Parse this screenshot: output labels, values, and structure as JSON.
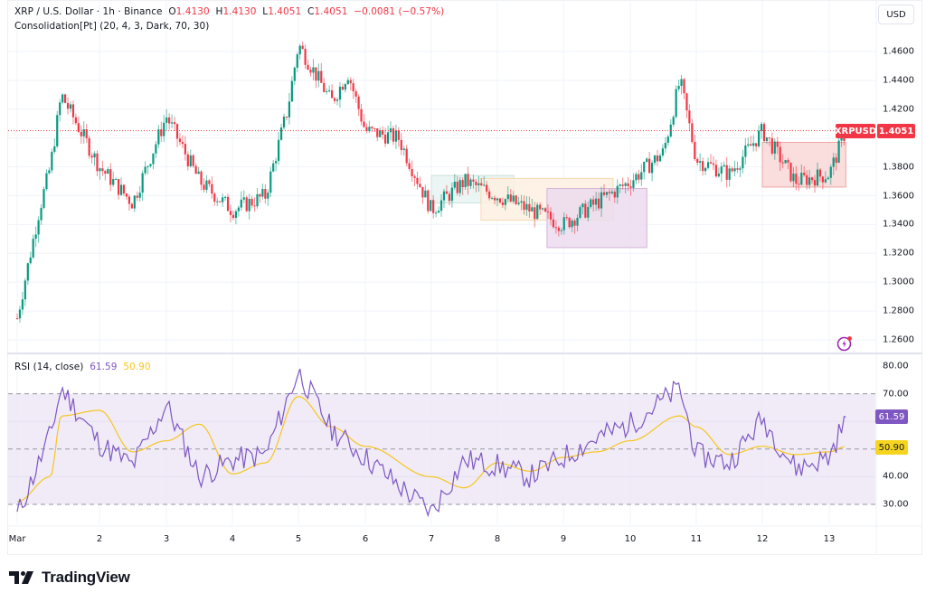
{
  "header": {
    "symbol_line": "XRP / U.S. Dollar · 1h · Binance",
    "o_label": "O",
    "o_value": "1.4130",
    "h_label": "H",
    "h_value": "1.4130",
    "l_label": "L",
    "l_value": "1.4051",
    "c_label": "C",
    "c_value": "1.4051",
    "change": "−0.0081 (−0.57%)",
    "indicator": "Consolidation[Pt] (20, 4, 3, Dark, 70, 30)"
  },
  "currency_button": "USD",
  "price_axis": {
    "labels": [
      "1.4600",
      "1.4400",
      "1.4200",
      "1.4000",
      "1.3800",
      "1.3600",
      "1.3400",
      "1.3200",
      "1.3000",
      "1.2800",
      "1.2600"
    ],
    "last_price": "1.4051",
    "symbol_tag": "XRPUSD"
  },
  "rsi": {
    "title": "RSI (14, close)",
    "value": "61.59",
    "ma_value": "50.90",
    "axis_labels": [
      "80.00",
      "70.00",
      "50.00",
      "40.00",
      "30.00"
    ],
    "upper_band": 70,
    "lower_band": 30,
    "middle_band": 50
  },
  "time_axis": {
    "labels": [
      "Mar",
      "2",
      "3",
      "4",
      "5",
      "6",
      "7",
      "8",
      "9",
      "10",
      "11",
      "12",
      "13"
    ]
  },
  "branding": {
    "logo_text": "TradingView"
  },
  "colors": {
    "up": "#089981",
    "down": "#f23645",
    "rsi_line": "#7e57c2",
    "rsi_ma": "#f7c51e",
    "rsi_band_fill": "#7e57c21a",
    "last_price_line": "#f23645",
    "box_teal": "#b2dfdb",
    "box_orange": "#ffe0b2",
    "box_purple": "#e1bee7",
    "box_red": "#f8bbbb"
  },
  "chart_data": {
    "type": "candlestick",
    "title": "XRP / U.S. Dollar · 1h · Binance",
    "xlabel": "",
    "ylabel": "USD",
    "ylim": [
      1.25,
      1.475
    ],
    "x_ticks": [
      "Mar",
      "2",
      "3",
      "4",
      "5",
      "6",
      "7",
      "8",
      "9",
      "10",
      "11",
      "12",
      "13"
    ],
    "last": {
      "open": 1.413,
      "high": 1.413,
      "low": 1.4051,
      "close": 1.4051,
      "change": -0.0081,
      "change_pct": -0.57
    },
    "close_path": [
      {
        "x": "Mar 1 00:00",
        "close": 1.275
      },
      {
        "x": "Mar 1 08:00",
        "close": 1.35
      },
      {
        "x": "Mar 1 12:00",
        "close": 1.38
      },
      {
        "x": "Mar 1 16:00",
        "close": 1.43
      },
      {
        "x": "Mar 2 00:00",
        "close": 1.38
      },
      {
        "x": "Mar 2 12:00",
        "close": 1.355
      },
      {
        "x": "Mar 3 00:00",
        "close": 1.415
      },
      {
        "x": "Mar 3 12:00",
        "close": 1.37
      },
      {
        "x": "Mar 4 00:00",
        "close": 1.35
      },
      {
        "x": "Mar 4 12:00",
        "close": 1.36
      },
      {
        "x": "Mar 4 20:00",
        "close": 1.42
      },
      {
        "x": "Mar 5 00:00",
        "close": 1.465
      },
      {
        "x": "Mar 5 12:00",
        "close": 1.425
      },
      {
        "x": "Mar 5 18:00",
        "close": 1.445
      },
      {
        "x": "Mar 6 00:00",
        "close": 1.405
      },
      {
        "x": "Mar 6 12:00",
        "close": 1.4
      },
      {
        "x": "Mar 7 00:00",
        "close": 1.35
      },
      {
        "x": "Mar 7 12:00",
        "close": 1.37
      },
      {
        "x": "Mar 8 00:00",
        "close": 1.36
      },
      {
        "x": "Mar 8 12:00",
        "close": 1.35
      },
      {
        "x": "Mar 9 00:00",
        "close": 1.34
      },
      {
        "x": "Mar 9 12:00",
        "close": 1.355
      },
      {
        "x": "Mar 10 00:00",
        "close": 1.37
      },
      {
        "x": "Mar 10 12:00",
        "close": 1.39
      },
      {
        "x": "Mar 10 18:00",
        "close": 1.44
      },
      {
        "x": "Mar 11 00:00",
        "close": 1.385
      },
      {
        "x": "Mar 11 12:00",
        "close": 1.375
      },
      {
        "x": "Mar 12 00:00",
        "close": 1.405
      },
      {
        "x": "Mar 12 12:00",
        "close": 1.37
      },
      {
        "x": "Mar 13 00:00",
        "close": 1.375
      },
      {
        "x": "Mar 13 06:00",
        "close": 1.4051
      }
    ],
    "consolidation_boxes": [
      {
        "from": "Mar 7 00:00",
        "to": "Mar 8 06:00",
        "top": 1.374,
        "bottom": 1.355,
        "color": "teal"
      },
      {
        "from": "Mar 7 18:00",
        "to": "Mar 9 18:00",
        "top": 1.372,
        "bottom": 1.343,
        "color": "orange"
      },
      {
        "from": "Mar 8 18:00",
        "to": "Mar 10 06:00",
        "top": 1.365,
        "bottom": 1.324,
        "color": "purple"
      },
      {
        "from": "Mar 12 00:00",
        "to": "Mar 13 06:00",
        "top": 1.397,
        "bottom": 1.366,
        "color": "red"
      }
    ],
    "rsi_series": {
      "name": "RSI (14, close)",
      "ylim": [
        25,
        82
      ],
      "bands": [
        30,
        50,
        70
      ],
      "approx_values": [
        {
          "x": "Mar 1 00:00",
          "rsi": 26,
          "ma": 31
        },
        {
          "x": "Mar 1 12:00",
          "rsi": 55,
          "ma": 40
        },
        {
          "x": "Mar 1 16:00",
          "rsi": 72,
          "ma": 62
        },
        {
          "x": "Mar 2 00:00",
          "rsi": 52,
          "ma": 64
        },
        {
          "x": "Mar 2 12:00",
          "rsi": 44,
          "ma": 49
        },
        {
          "x": "Mar 3 00:00",
          "rsi": 66,
          "ma": 53
        },
        {
          "x": "Mar 3 12:00",
          "rsi": 40,
          "ma": 59
        },
        {
          "x": "Mar 4 00:00",
          "rsi": 46,
          "ma": 41
        },
        {
          "x": "Mar 4 12:00",
          "rsi": 48,
          "ma": 45
        },
        {
          "x": "Mar 5 00:00",
          "rsi": 78,
          "ma": 69
        },
        {
          "x": "Mar 5 12:00",
          "rsi": 57,
          "ma": 58
        },
        {
          "x": "Mar 6 00:00",
          "rsi": 47,
          "ma": 51
        },
        {
          "x": "Mar 7 00:00",
          "rsi": 27,
          "ma": 40
        },
        {
          "x": "Mar 7 12:00",
          "rsi": 46,
          "ma": 36
        },
        {
          "x": "Mar 8 00:00",
          "rsi": 44,
          "ma": 45
        },
        {
          "x": "Mar 8 12:00",
          "rsi": 40,
          "ma": 42
        },
        {
          "x": "Mar 9 00:00",
          "rsi": 47,
          "ma": 47
        },
        {
          "x": "Mar 9 12:00",
          "rsi": 54,
          "ma": 49
        },
        {
          "x": "Mar 10 00:00",
          "rsi": 59,
          "ma": 53
        },
        {
          "x": "Mar 10 18:00",
          "rsi": 72,
          "ma": 62
        },
        {
          "x": "Mar 11 00:00",
          "rsi": 48,
          "ma": 58
        },
        {
          "x": "Mar 11 12:00",
          "rsi": 45,
          "ma": 48
        },
        {
          "x": "Mar 12 00:00",
          "rsi": 61,
          "ma": 51
        },
        {
          "x": "Mar 12 12:00",
          "rsi": 43,
          "ma": 48
        },
        {
          "x": "Mar 13 00:00",
          "rsi": 47,
          "ma": 49
        },
        {
          "x": "Mar 13 06:00",
          "rsi": 61.59,
          "ma": 50.9
        }
      ]
    }
  }
}
